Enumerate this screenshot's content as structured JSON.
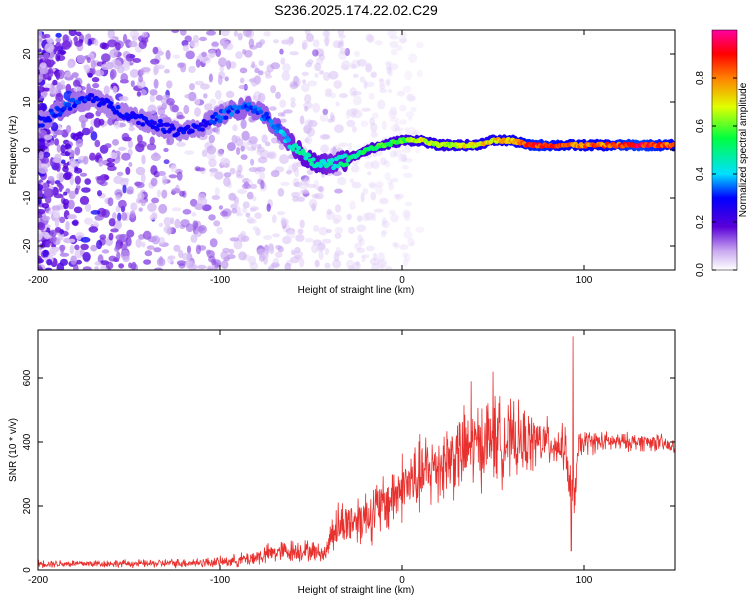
{
  "title": "S236.2025.174.22.02.C29",
  "chart_data": [
    {
      "type": "heatmap",
      "xlabel": "Height of straight line (km)",
      "ylabel": "Frequency (Hz)",
      "xlim": [
        -200,
        150
      ],
      "ylim": [
        -25,
        25
      ],
      "x_ticks": [
        -200,
        -100,
        0,
        100
      ],
      "y_ticks": [
        -20,
        -10,
        0,
        10,
        20
      ],
      "colorbar": {
        "label": "Normalized spectral amplitude",
        "range": [
          0,
          1
        ],
        "ticks": [
          "0.0",
          "0.2",
          "0.4",
          "0.6",
          "0.8"
        ],
        "colormap": "rainbow (white-violet-blue-cyan-green-yellow-red-magenta)"
      },
      "ridge": {
        "x": [
          -198,
          -185,
          -170,
          -155,
          -140,
          -125,
          -110,
          -95,
          -85,
          -75,
          -65,
          -55,
          -47,
          -40,
          -30,
          -20,
          -10,
          0,
          10,
          20,
          30,
          40,
          50,
          60,
          70,
          80,
          90,
          100,
          110,
          120,
          130,
          140,
          150
        ],
        "frequency": [
          6,
          9,
          11,
          8,
          6,
          4,
          5,
          8,
          9,
          7,
          3,
          -1,
          -3,
          -3,
          -2,
          0,
          1,
          2,
          2,
          1,
          1,
          1,
          2,
          2,
          1,
          1,
          1,
          1,
          1,
          1,
          1,
          1,
          1
        ],
        "amplitude": [
          0.3,
          0.35,
          0.3,
          0.3,
          0.3,
          0.3,
          0.3,
          0.35,
          0.35,
          0.35,
          0.4,
          0.5,
          0.5,
          0.45,
          0.5,
          0.55,
          0.6,
          0.6,
          0.7,
          0.7,
          0.7,
          0.75,
          0.75,
          0.8,
          0.9,
          0.9,
          0.85,
          0.85,
          0.85,
          0.9,
          0.95,
          0.9,
          0.85
        ]
      }
    },
    {
      "type": "line",
      "xlabel": "Height of straight line (km)",
      "ylabel": "SNR (10 * v/v)",
      "xlim": [
        -200,
        150
      ],
      "ylim": [
        0,
        750
      ],
      "x_ticks": [
        -200,
        -100,
        0,
        100
      ],
      "y_ticks": [
        0,
        200,
        400,
        600
      ],
      "color": "#e8312e",
      "envelope": {
        "x": [
          -200,
          -180,
          -160,
          -140,
          -120,
          -100,
          -90,
          -80,
          -70,
          -60,
          -50,
          -42,
          -38,
          -30,
          -20,
          -10,
          0,
          10,
          20,
          30,
          40,
          50,
          60,
          70,
          80,
          90,
          93,
          95,
          97,
          100,
          110,
          120,
          130,
          140,
          150
        ],
        "mean": [
          20,
          20,
          20,
          20,
          22,
          25,
          30,
          40,
          55,
          60,
          60,
          50,
          130,
          150,
          170,
          200,
          260,
          290,
          330,
          360,
          390,
          410,
          400,
          400,
          400,
          380,
          200,
          250,
          380,
          400,
          400,
          400,
          400,
          400,
          380
        ],
        "spread": [
          15,
          15,
          15,
          15,
          18,
          20,
          25,
          35,
          40,
          45,
          40,
          30,
          90,
          90,
          110,
          120,
          130,
          150,
          150,
          160,
          160,
          170,
          150,
          120,
          90,
          80,
          150,
          80,
          60,
          50,
          40,
          35,
          35,
          35,
          30
        ]
      },
      "spikes": [
        {
          "x": 94,
          "y": 730
        },
        {
          "x": 93,
          "y": 60
        },
        {
          "x": 50,
          "y": 620
        },
        {
          "x": 38,
          "y": 590
        }
      ]
    }
  ]
}
